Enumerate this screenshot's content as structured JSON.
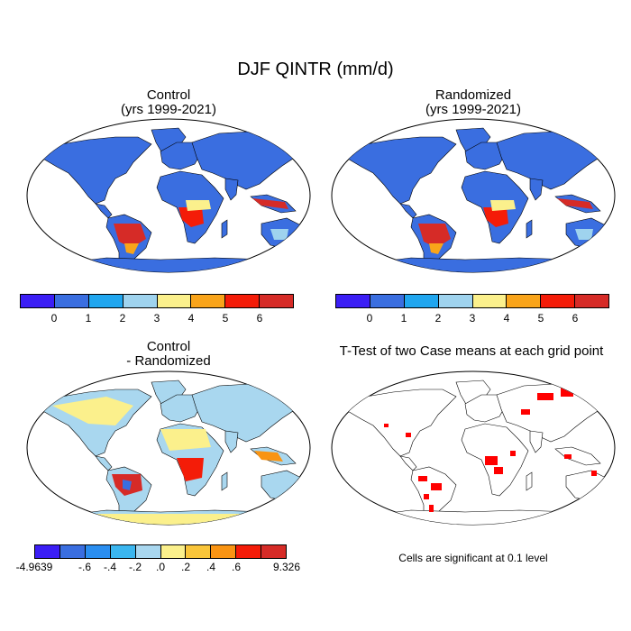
{
  "figure_title": "DJF QINTR (mm/d)",
  "panels": {
    "control": {
      "title_line1": "Control",
      "title_line2": "(yrs 1999-2021)"
    },
    "randomized": {
      "title_line1": "Randomized",
      "title_line2": "(yrs 1999-2021)"
    },
    "difference": {
      "title_line1": "Control",
      "title_line2": "- Randomized"
    },
    "ttest": {
      "title": "T-Test of two Case means at each grid point",
      "note": "Cells are significant at 0.1 level"
    }
  },
  "colorbar_main": {
    "colors": [
      "#3b1ef5",
      "#3a6ee0",
      "#20a6ef",
      "#9fd3ee",
      "#fbf08c",
      "#f9a41a",
      "#f41c08",
      "#d62b27"
    ],
    "tick_labels": [
      "0",
      "1",
      "2",
      "3",
      "4",
      "5",
      "6"
    ]
  },
  "colorbar_diff": {
    "colors": [
      "#3b1ef5",
      "#3a6ee0",
      "#2a8ef0",
      "#3bb6ef",
      "#a9d7ef",
      "#fbf08c",
      "#f9c53a",
      "#f99413",
      "#f41c08",
      "#d62b27"
    ],
    "tick_labels": [
      "-4.9639",
      "-.6",
      "-.4",
      "-.2",
      ".0",
      ".2",
      ".4",
      ".6",
      "9.326"
    ]
  },
  "map_colors": {
    "ocean": "#ffffff",
    "ttest_significant": "#ff0000"
  }
}
